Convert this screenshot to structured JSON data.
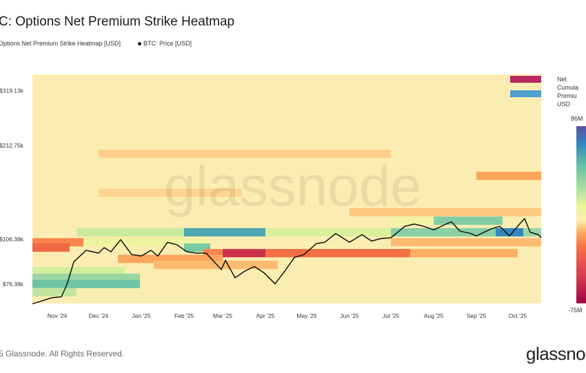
{
  "header": {
    "title": "C: Options Net Premium Strike Heatmap"
  },
  "legend": {
    "heatmap": "Options Net Premium Strike Heatmap [USD]",
    "price": "BTC: Price [USD]"
  },
  "colorbar": {
    "title_lines": [
      "Net",
      "Cumula",
      "Premiu",
      "USD"
    ],
    "max_label": "86M",
    "min_label": "-75M",
    "min": -75,
    "max": 86
  },
  "watermark": "glassnode",
  "footer": {
    "copyright": "5 Glassnode. All Rights Reserved.",
    "logo": "glassnod"
  },
  "colors": {
    "background_cell": "#fbedb2",
    "price_line": "#111111",
    "legend_pos": "#b8285e",
    "legend_neg": "#4f9fd0"
  },
  "chart_data": {
    "type": "heatmap",
    "title": "BTC: Options Net Premium Strike Heatmap",
    "y_scale": "log",
    "x_range": [
      "2024-10-14",
      "2025-10-18"
    ],
    "y_ticks": [
      {
        "v": 76380,
        "label": "$76.38k"
      },
      {
        "v": 106380,
        "label": "$106.38k"
      },
      {
        "v": 212750,
        "label": "$212.75k"
      },
      {
        "v": 319130,
        "label": "$319.13k"
      }
    ],
    "x_ticks": [
      {
        "d": "2024-11-01",
        "label": "Nov '24"
      },
      {
        "d": "2024-12-01",
        "label": "Dec '24"
      },
      {
        "d": "2025-01-01",
        "label": "Jan '25"
      },
      {
        "d": "2025-02-01",
        "label": "Feb '25"
      },
      {
        "d": "2025-03-01",
        "label": "Mar '25"
      },
      {
        "d": "2025-04-01",
        "label": "Apr '25"
      },
      {
        "d": "2025-05-01",
        "label": "May '25"
      },
      {
        "d": "2025-06-01",
        "label": "Jun '25"
      },
      {
        "d": "2025-07-01",
        "label": "Jul '25"
      },
      {
        "d": "2025-08-01",
        "label": "Aug '25"
      },
      {
        "d": "2025-09-01",
        "label": "Sep '25"
      },
      {
        "d": "2025-10-01",
        "label": "Oct '25"
      }
    ],
    "cells_units": "USD millions",
    "cells": [
      {
        "strike": 112000,
        "from": "2024-11-15",
        "to": "2025-02-01",
        "value": 22
      },
      {
        "strike": 112000,
        "from": "2025-02-01",
        "to": "2025-04-01",
        "value": 60
      },
      {
        "strike": 112000,
        "from": "2025-04-01",
        "to": "2025-07-01",
        "value": 18
      },
      {
        "strike": 112000,
        "from": "2025-07-01",
        "to": "2025-09-15",
        "value": 40
      },
      {
        "strike": 112000,
        "from": "2025-09-15",
        "to": "2025-10-05",
        "value": 70
      },
      {
        "strike": 112000,
        "from": "2025-10-05",
        "to": "2025-10-18",
        "value": 35
      },
      {
        "strike": 104000,
        "from": "2024-10-14",
        "to": "2024-11-20",
        "value": -20
      },
      {
        "strike": 104000,
        "from": "2024-11-20",
        "to": "2025-02-15",
        "value": 10
      },
      {
        "strike": 104000,
        "from": "2025-07-01",
        "to": "2025-10-18",
        "value": -8
      },
      {
        "strike": 100000,
        "from": "2024-10-14",
        "to": "2024-11-10",
        "value": -28
      },
      {
        "strike": 100000,
        "from": "2025-02-01",
        "to": "2025-02-20",
        "value": 45
      },
      {
        "strike": 96000,
        "from": "2025-02-15",
        "to": "2025-03-01",
        "value": -20
      },
      {
        "strike": 96000,
        "from": "2025-03-01",
        "to": "2025-04-01",
        "value": -55
      },
      {
        "strike": 96000,
        "from": "2025-04-01",
        "to": "2025-07-15",
        "value": -25
      },
      {
        "strike": 96000,
        "from": "2025-07-15",
        "to": "2025-10-01",
        "value": -10
      },
      {
        "strike": 92000,
        "from": "2024-12-15",
        "to": "2025-03-01",
        "value": -12
      },
      {
        "strike": 88000,
        "from": "2025-01-10",
        "to": "2025-04-10",
        "value": -8
      },
      {
        "strike": 84000,
        "from": "2024-10-14",
        "to": "2024-12-20",
        "value": 20
      },
      {
        "strike": 80000,
        "from": "2024-10-14",
        "to": "2024-12-31",
        "value": 35
      },
      {
        "strike": 76380,
        "from": "2024-10-14",
        "to": "2024-12-31",
        "value": 48
      },
      {
        "strike": 72000,
        "from": "2024-10-14",
        "to": "2024-11-15",
        "value": 25
      },
      {
        "strike": 122000,
        "from": "2025-08-01",
        "to": "2025-09-20",
        "value": 42
      },
      {
        "strike": 122000,
        "from": "2025-07-01",
        "to": "2025-08-01",
        "value": 8
      },
      {
        "strike": 130000,
        "from": "2025-06-01",
        "to": "2025-10-18",
        "value": -6
      },
      {
        "strike": 170000,
        "from": "2025-09-01",
        "to": "2025-10-18",
        "value": -12
      },
      {
        "strike": 200000,
        "from": "2024-12-01",
        "to": "2025-07-01",
        "value": -5
      },
      {
        "strike": 150000,
        "from": "2024-12-01",
        "to": "2025-03-15",
        "value": -4
      }
    ],
    "series": [
      {
        "name": "BTC: Price [USD]",
        "points": [
          [
            "2024-10-14",
            66000
          ],
          [
            "2024-10-21",
            67500
          ],
          [
            "2024-10-28",
            69000
          ],
          [
            "2024-11-04",
            69500
          ],
          [
            "2024-11-08",
            76000
          ],
          [
            "2024-11-13",
            90000
          ],
          [
            "2024-11-22",
            98000
          ],
          [
            "2024-12-01",
            96000
          ],
          [
            "2024-12-05",
            100000
          ],
          [
            "2024-12-10",
            97000
          ],
          [
            "2024-12-17",
            106000
          ],
          [
            "2024-12-25",
            95000
          ],
          [
            "2025-01-01",
            94000
          ],
          [
            "2025-01-08",
            98000
          ],
          [
            "2025-01-13",
            94000
          ],
          [
            "2025-01-20",
            104000
          ],
          [
            "2025-01-27",
            102000
          ],
          [
            "2025-02-03",
            97000
          ],
          [
            "2025-02-10",
            96000
          ],
          [
            "2025-02-17",
            96000
          ],
          [
            "2025-02-28",
            85000
          ],
          [
            "2025-03-03",
            91000
          ],
          [
            "2025-03-10",
            80000
          ],
          [
            "2025-03-17",
            84000
          ],
          [
            "2025-03-24",
            87000
          ],
          [
            "2025-03-31",
            83000
          ],
          [
            "2025-04-08",
            76500
          ],
          [
            "2025-04-15",
            84000
          ],
          [
            "2025-04-22",
            93000
          ],
          [
            "2025-04-29",
            95000
          ],
          [
            "2025-05-08",
            103000
          ],
          [
            "2025-05-14",
            104000
          ],
          [
            "2025-05-22",
            111000
          ],
          [
            "2025-06-01",
            104000
          ],
          [
            "2025-06-10",
            110000
          ],
          [
            "2025-06-17",
            105000
          ],
          [
            "2025-06-24",
            107000
          ],
          [
            "2025-07-01",
            107500
          ],
          [
            "2025-07-11",
            117000
          ],
          [
            "2025-07-18",
            119000
          ],
          [
            "2025-07-25",
            117000
          ],
          [
            "2025-08-01",
            114000
          ],
          [
            "2025-08-10",
            119000
          ],
          [
            "2025-08-14",
            121000
          ],
          [
            "2025-08-20",
            113000
          ],
          [
            "2025-08-28",
            111000
          ],
          [
            "2025-09-01",
            109000
          ],
          [
            "2025-09-12",
            115000
          ],
          [
            "2025-09-18",
            117000
          ],
          [
            "2025-09-25",
            109000
          ],
          [
            "2025-10-03",
            120000
          ],
          [
            "2025-10-06",
            124000
          ],
          [
            "2025-10-10",
            112000
          ],
          [
            "2025-10-16",
            110000
          ],
          [
            "2025-10-18",
            107500
          ]
        ]
      }
    ]
  }
}
